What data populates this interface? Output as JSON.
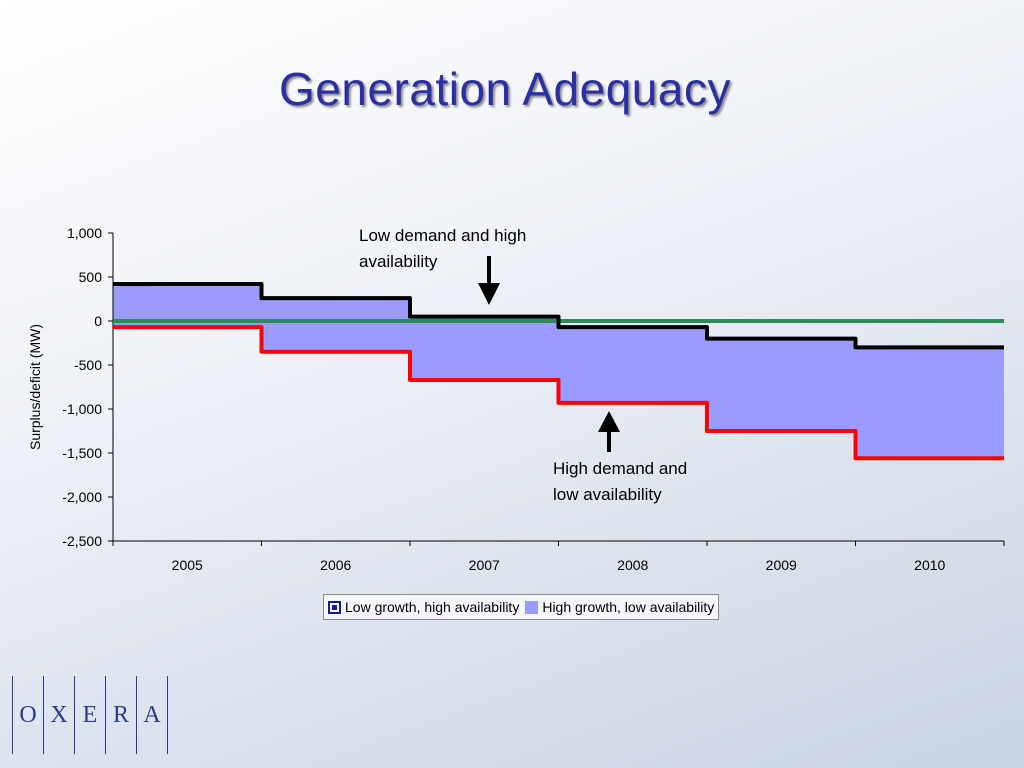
{
  "title": "Generation Adequacy",
  "chart_data": {
    "type": "area",
    "categories": [
      "2005",
      "2006",
      "2007",
      "2008",
      "2009",
      "2010"
    ],
    "series": [
      {
        "name": "Low growth, high availability",
        "values": [
          420,
          260,
          50,
          -70,
          -200,
          -300
        ],
        "color": "#000000"
      },
      {
        "name": "High growth, low availability",
        "values": [
          -70,
          -350,
          -670,
          -930,
          -1250,
          -1560
        ],
        "color": "#ff0000",
        "fill": "#9a9aff"
      }
    ],
    "zero_line_color": "#2e8b57",
    "ylabel": "Surplus/deficit (MW)",
    "xlabel": "",
    "ylim": [
      -2500,
      1000
    ],
    "yticks": [
      1000,
      500,
      0,
      -500,
      -1000,
      -1500,
      -2000,
      -2500
    ],
    "ytick_labels": [
      "1,000",
      "500",
      "0",
      "-500",
      "-1,000",
      "-1,500",
      "-2,000",
      "-2,500"
    ],
    "annotations": [
      {
        "text_lines": [
          "Low demand and high",
          "availability"
        ],
        "arrow": "down"
      },
      {
        "text_lines": [
          "High demand and",
          "low availability"
        ],
        "arrow": "up"
      }
    ]
  },
  "legend": {
    "items": [
      {
        "label": "Low growth, high availability"
      },
      {
        "label": "High growth, low availability"
      }
    ]
  },
  "logo": {
    "letters": [
      "O",
      "X",
      "E",
      "R",
      "A"
    ]
  }
}
